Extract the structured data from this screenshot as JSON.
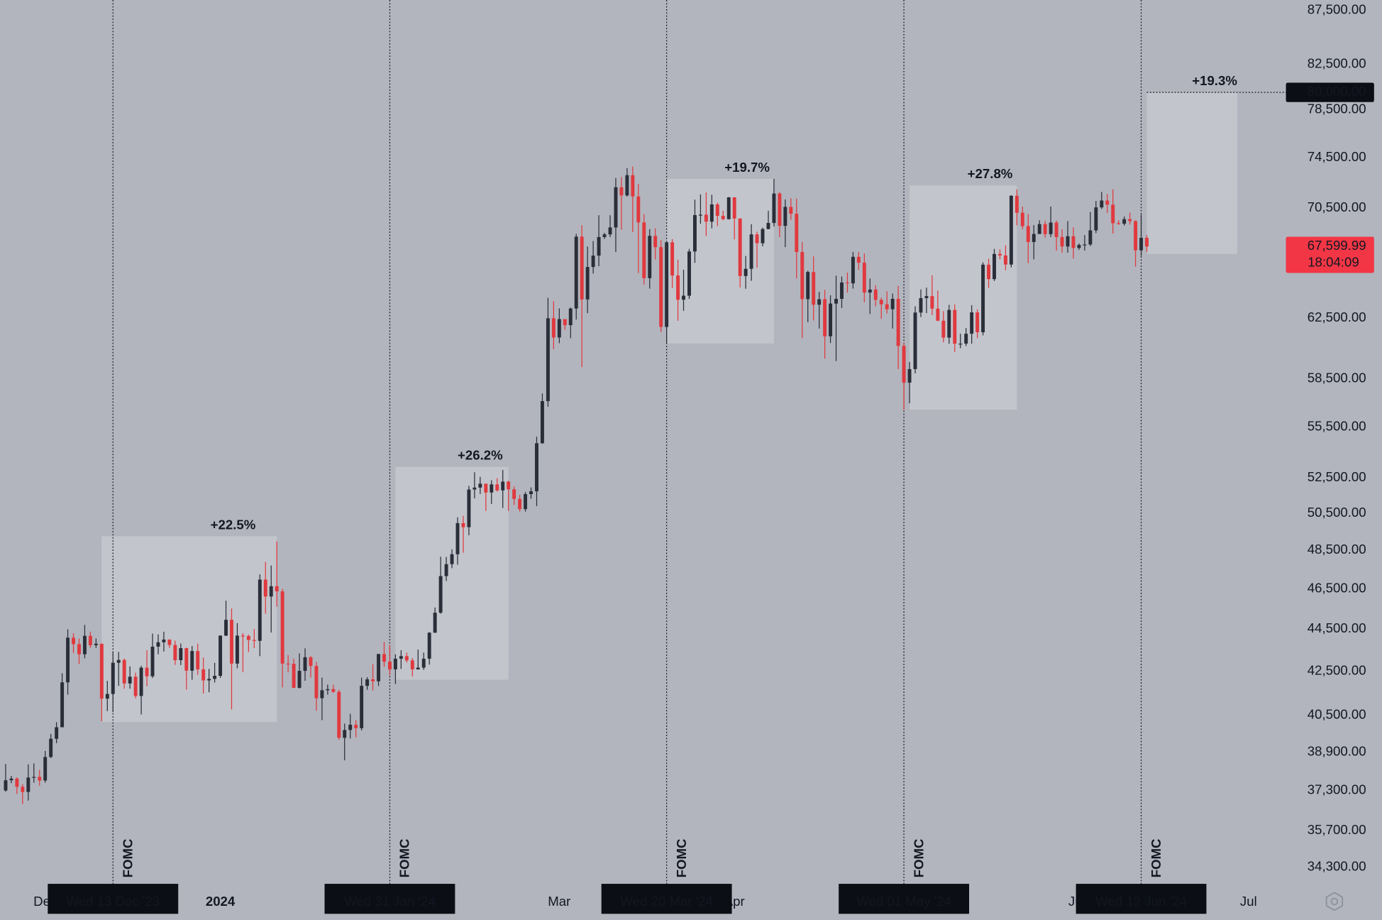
{
  "chart_data": {
    "type": "candlestick",
    "log_scale": true,
    "up_color": "#2a2e39",
    "down_color": "#e0393e",
    "xlim": [
      "2023-11-23",
      "2024-07-07"
    ],
    "ylim": [
      33650,
      88500
    ],
    "yticks": [
      {
        "value": 87500,
        "label": "87,500.00"
      },
      {
        "value": 82500,
        "label": "82,500.00"
      },
      {
        "value": 78500,
        "label": "78,500.00"
      },
      {
        "value": 74500,
        "label": "74,500.00"
      },
      {
        "value": 70500,
        "label": "70,500.00"
      },
      {
        "value": 62500,
        "label": "62,500.00"
      },
      {
        "value": 58500,
        "label": "58,500.00"
      },
      {
        "value": 55500,
        "label": "55,500.00"
      },
      {
        "value": 52500,
        "label": "52,500.00"
      },
      {
        "value": 50500,
        "label": "50,500.00"
      },
      {
        "value": 48500,
        "label": "48,500.00"
      },
      {
        "value": 46500,
        "label": "46,500.00"
      },
      {
        "value": 44500,
        "label": "44,500.00"
      },
      {
        "value": 42500,
        "label": "42,500.00"
      },
      {
        "value": 40500,
        "label": "40,500.00"
      },
      {
        "value": 38900,
        "label": "38,900.00"
      },
      {
        "value": 37300,
        "label": "37,300.00"
      },
      {
        "value": 35700,
        "label": "35,700.00"
      },
      {
        "value": 34300,
        "label": "34,300.00"
      }
    ],
    "xticks": [
      {
        "value": "2023-12-01",
        "label": "Dec"
      },
      {
        "value": "2024-01-01",
        "label": "2024"
      },
      {
        "value": "2024-03-01",
        "label": "Mar"
      },
      {
        "value": "2024-04-01",
        "label": "Apr"
      },
      {
        "value": "2024-06-01",
        "label": "Jun"
      },
      {
        "value": "2024-07-01",
        "label": "Jul"
      }
    ],
    "events": [
      {
        "date": "2023-12-13",
        "label": "Wed 13 Dec '23",
        "text": "FOMC"
      },
      {
        "date": "2024-01-31",
        "label": "Wed 31 Jan '24",
        "text": "FOMC"
      },
      {
        "date": "2024-03-20",
        "label": "Wed 20 Mar '24",
        "text": "FOMC"
      },
      {
        "date": "2024-05-01",
        "label": "Wed 01 May '24",
        "text": "FOMC"
      },
      {
        "date": "2024-06-12",
        "label": "Wed 12 Jun '24",
        "text": "FOMC"
      }
    ],
    "ranges": [
      {
        "start": "2023-12-11",
        "end": "2024-01-11",
        "low": 40200,
        "high": 49250,
        "label": "+22.5%"
      },
      {
        "start": "2024-02-01",
        "end": "2024-02-21",
        "low": 42100,
        "high": 53130,
        "label": "+26.2%"
      },
      {
        "start": "2024-03-20",
        "end": "2024-04-08",
        "low": 60800,
        "high": 72780,
        "label": "+19.7%"
      },
      {
        "start": "2024-05-02",
        "end": "2024-05-21",
        "low": 56550,
        "high": 72270,
        "label": "+27.8%"
      },
      {
        "start": "2024-06-13",
        "end": "2024-06-29",
        "low": 67050,
        "high": 80000,
        "label": "+19.3%"
      }
    ],
    "target": {
      "value": 80000,
      "label": "80,000.00"
    },
    "last_price": {
      "value": 67599.99,
      "label": "67,599.99",
      "countdown": "18:04:09"
    },
    "x": [
      "2023-11-24",
      "2023-11-25",
      "2023-11-26",
      "2023-11-27",
      "2023-11-28",
      "2023-11-29",
      "2023-11-30",
      "2023-12-01",
      "2023-12-02",
      "2023-12-03",
      "2023-12-04",
      "2023-12-05",
      "2023-12-06",
      "2023-12-07",
      "2023-12-08",
      "2023-12-09",
      "2023-12-10",
      "2023-12-11",
      "2023-12-12",
      "2023-12-13",
      "2023-12-14",
      "2023-12-15",
      "2023-12-16",
      "2023-12-17",
      "2023-12-18",
      "2023-12-19",
      "2023-12-20",
      "2023-12-21",
      "2023-12-22",
      "2023-12-23",
      "2023-12-24",
      "2023-12-25",
      "2023-12-26",
      "2023-12-27",
      "2023-12-28",
      "2023-12-29",
      "2023-12-30",
      "2023-12-31",
      "2024-01-01",
      "2024-01-02",
      "2024-01-03",
      "2024-01-04",
      "2024-01-05",
      "2024-01-06",
      "2024-01-07",
      "2024-01-08",
      "2024-01-09",
      "2024-01-10",
      "2024-01-11",
      "2024-01-12",
      "2024-01-13",
      "2024-01-14",
      "2024-01-15",
      "2024-01-16",
      "2024-01-17",
      "2024-01-18",
      "2024-01-19",
      "2024-01-20",
      "2024-01-21",
      "2024-01-22",
      "2024-01-23",
      "2024-01-24",
      "2024-01-25",
      "2024-01-26",
      "2024-01-27",
      "2024-01-28",
      "2024-01-29",
      "2024-01-30",
      "2024-01-31",
      "2024-02-01",
      "2024-02-02",
      "2024-02-03",
      "2024-02-04",
      "2024-02-05",
      "2024-02-06",
      "2024-02-07",
      "2024-02-08",
      "2024-02-09",
      "2024-02-10",
      "2024-02-11",
      "2024-02-12",
      "2024-02-13",
      "2024-02-14",
      "2024-02-15",
      "2024-02-16",
      "2024-02-17",
      "2024-02-18",
      "2024-02-19",
      "2024-02-20",
      "2024-02-21",
      "2024-02-22",
      "2024-02-23",
      "2024-02-24",
      "2024-02-25",
      "2024-02-26",
      "2024-02-27",
      "2024-02-28",
      "2024-02-29",
      "2024-03-01",
      "2024-03-02",
      "2024-03-03",
      "2024-03-04",
      "2024-03-05",
      "2024-03-06",
      "2024-03-07",
      "2024-03-08",
      "2024-03-09",
      "2024-03-10",
      "2024-03-11",
      "2024-03-12",
      "2024-03-13",
      "2024-03-14",
      "2024-03-15",
      "2024-03-16",
      "2024-03-17",
      "2024-03-18",
      "2024-03-19",
      "2024-03-20",
      "2024-03-21",
      "2024-03-22",
      "2024-03-23",
      "2024-03-24",
      "2024-03-25",
      "2024-03-26",
      "2024-03-27",
      "2024-03-28",
      "2024-03-29",
      "2024-03-30",
      "2024-03-31",
      "2024-04-01",
      "2024-04-02",
      "2024-04-03",
      "2024-04-04",
      "2024-04-05",
      "2024-04-06",
      "2024-04-07",
      "2024-04-08",
      "2024-04-09",
      "2024-04-10",
      "2024-04-11",
      "2024-04-12",
      "2024-04-13",
      "2024-04-14",
      "2024-04-15",
      "2024-04-16",
      "2024-04-17",
      "2024-04-18",
      "2024-04-19",
      "2024-04-20",
      "2024-04-21",
      "2024-04-22",
      "2024-04-23",
      "2024-04-24",
      "2024-04-25",
      "2024-04-26",
      "2024-04-27",
      "2024-04-28",
      "2024-04-29",
      "2024-04-30",
      "2024-05-01",
      "2024-05-02",
      "2024-05-03",
      "2024-05-04",
      "2024-05-05",
      "2024-05-06",
      "2024-05-07",
      "2024-05-08",
      "2024-05-09",
      "2024-05-10",
      "2024-05-11",
      "2024-05-12",
      "2024-05-13",
      "2024-05-14",
      "2024-05-15",
      "2024-05-16",
      "2024-05-17",
      "2024-05-18",
      "2024-05-19",
      "2024-05-20",
      "2024-05-21",
      "2024-05-22",
      "2024-05-23",
      "2024-05-24",
      "2024-05-25",
      "2024-05-26",
      "2024-05-27",
      "2024-05-28",
      "2024-05-29",
      "2024-05-30",
      "2024-05-31",
      "2024-06-01",
      "2024-06-02",
      "2024-06-03",
      "2024-06-04",
      "2024-06-05",
      "2024-06-06",
      "2024-06-07",
      "2024-06-08",
      "2024-06-09",
      "2024-06-10",
      "2024-06-11",
      "2024-06-12",
      "2024-06-13"
    ],
    "open": [
      37300,
      37720,
      37790,
      37450,
      37240,
      37830,
      37860,
      37710,
      38690,
      39470,
      39970,
      41980,
      44080,
      43770,
      43290,
      44170,
      43720,
      43790,
      41240,
      41450,
      42890,
      43020,
      41930,
      42240,
      41360,
      42660,
      42260,
      43650,
      43860,
      43990,
      43730,
      43010,
      43580,
      42520,
      43440,
      42580,
      42070,
      42140,
      42280,
      44180,
      44950,
      42850,
      44180,
      44160,
      43970,
      43930,
      46970,
      46110,
      46630,
      46370,
      42850,
      42840,
      41730,
      42510,
      43150,
      42740,
      41260,
      41620,
      41670,
      41550,
      39510,
      39850,
      40080,
      39930,
      41820,
      42120,
      42030,
      43300,
      42940,
      42580,
      43080,
      43200,
      43000,
      42580,
      42660,
      43080,
      44320,
      45300,
      47150,
      47770,
      48290,
      49960,
      49740,
      51830,
      51940,
      52160,
      51660,
      52120,
      51780,
      52280,
      51840,
      51300,
      50730,
      51570,
      51730,
      54520,
      57090,
      62500,
      61200,
      62440,
      62030,
      63170,
      68330,
      63800,
      66100,
      66930,
      68300,
      68500,
      69020,
      72120,
      71480,
      73080,
      71400,
      69400,
      65300,
      68390,
      67550,
      61910,
      67910,
      65490,
      63780,
      64060,
      67230,
      69960,
      69990,
      69460,
      70780,
      69900,
      69650,
      71330,
      69700,
      65450,
      65970,
      68500,
      67840,
      68900,
      69360,
      71630,
      69140,
      70590,
      70060,
      67190,
      63820,
      65740,
      63430,
      63810,
      61280,
      63510,
      63840,
      64990,
      64930,
      66840,
      66410,
      64280,
      64490,
      63770,
      63460,
      63120,
      63840,
      60640,
      58250,
      59120,
      62890,
      63890,
      64030,
      63160,
      62330,
      61190,
      63070,
      60790,
      60790,
      61450,
      62900,
      61550,
      66270,
      65230,
      67050,
      66940,
      66280,
      71450,
      70140,
      69120,
      67930,
      68530,
      69270,
      68520,
      69390,
      68300,
      67600,
      68360,
      67490,
      67710,
      67750,
      68800,
      70550,
      71080,
      70760,
      69340,
      69300,
      69650,
      69500,
      67320,
      68240
    ],
    "high": [
      38400,
      37900,
      37840,
      37560,
      38380,
      38420,
      38150,
      38950,
      39680,
      40190,
      42400,
      44490,
      44300,
      44040,
      44700,
      44370,
      44040,
      43790,
      42050,
      43430,
      43400,
      43090,
      42720,
      42430,
      42750,
      43480,
      44280,
      44240,
      44370,
      44000,
      43940,
      43800,
      43600,
      43680,
      43790,
      43130,
      42600,
      42890,
      44190,
      45900,
      45510,
      44790,
      44300,
      44230,
      44500,
      47240,
      47890,
      47700,
      48970,
      46500,
      43250,
      43080,
      43330,
      43570,
      43200,
      42930,
      42200,
      41880,
      41870,
      41650,
      40130,
      40560,
      40280,
      42200,
      42220,
      42820,
      43310,
      43880,
      43730,
      43290,
      43480,
      43370,
      43110,
      43510,
      43370,
      44350,
      45560,
      48160,
      48150,
      48550,
      50280,
      50360,
      52040,
      52820,
      52550,
      52160,
      52360,
      52480,
      52950,
      52330,
      52010,
      51520,
      51690,
      51950,
      54910,
      57570,
      63910,
      63680,
      63180,
      62440,
      63230,
      68540,
      69190,
      67600,
      68000,
      69950,
      68620,
      69950,
      72850,
      72930,
      73650,
      73780,
      72390,
      70030,
      68900,
      68950,
      68070,
      68000,
      68150,
      66630,
      65900,
      67420,
      71150,
      71560,
      71710,
      71530,
      70910,
      70300,
      71350,
      71340,
      69700,
      66900,
      69270,
      68700,
      69010,
      70290,
      72780,
      71740,
      71170,
      71260,
      71230,
      67940,
      65830,
      66870,
      64330,
      64470,
      64090,
      65480,
      65420,
      65700,
      67200,
      67190,
      67080,
      65270,
      64790,
      63920,
      64370,
      64210,
      64750,
      60840,
      59590,
      63320,
      64500,
      64630,
      65500,
      64420,
      62990,
      63420,
      63450,
      61450,
      61830,
      63400,
      63110,
      66440,
      66700,
      67420,
      67390,
      67680,
      71500,
      71950,
      70620,
      70040,
      69200,
      69560,
      69520,
      70610,
      69540,
      68880,
      69500,
      69020,
      67820,
      68450,
      70190,
      71050,
      71750,
      71600,
      71950,
      69560,
      69850,
      70160,
      69560,
      69990,
      68450
    ],
    "low": [
      37250,
      37600,
      37160,
      36750,
      36890,
      37620,
      37500,
      37620,
      38650,
      39280,
      39970,
      41420,
      43350,
      42830,
      43100,
      43590,
      43590,
      40230,
      40680,
      40640,
      41820,
      41690,
      41690,
      41250,
      40530,
      41800,
      42180,
      43290,
      43420,
      43590,
      42790,
      42780,
      41650,
      42100,
      42330,
      41470,
      41530,
      41970,
      42190,
      44160,
      40750,
      42630,
      42450,
      43400,
      43580,
      43200,
      45250,
      44330,
      45600,
      41750,
      42440,
      41720,
      41700,
      42050,
      42200,
      40700,
      40280,
      41420,
      41500,
      39430,
      38550,
      39480,
      39530,
      39830,
      41640,
      41610,
      41810,
      42700,
      42300,
      41900,
      42600,
      42900,
      42250,
      42570,
      42560,
      42800,
      44320,
      45250,
      46900,
      47560,
      47740,
      48370,
      49300,
      51330,
      51580,
      50630,
      51020,
      51710,
      50790,
      50630,
      50960,
      50590,
      50590,
      51310,
      50900,
      54480,
      56740,
      60430,
      60820,
      61710,
      61150,
      62410,
      59250,
      62850,
      65630,
      66160,
      68160,
      68300,
      67190,
      68850,
      71380,
      68670,
      65660,
      64840,
      64560,
      66640,
      61560,
      60800,
      64590,
      62330,
      63010,
      63830,
      66400,
      69300,
      68380,
      68950,
      69120,
      69570,
      69620,
      68130,
      64640,
      64550,
      65110,
      66050,
      67610,
      68880,
      69090,
      68300,
      67550,
      69600,
      65280,
      61160,
      62230,
      62350,
      61800,
      59800,
      60830,
      59640,
      63210,
      64280,
      64560,
      65890,
      63600,
      62790,
      63330,
      62460,
      62820,
      61800,
      59120,
      56550,
      56950,
      58840,
      62580,
      62850,
      62720,
      62300,
      60880,
      60770,
      60230,
      60490,
      60630,
      60790,
      61150,
      61340,
      64610,
      65100,
      66660,
      65870,
      66070,
      69180,
      68880,
      66380,
      66660,
      68530,
      68250,
      68300,
      67300,
      67140,
      67140,
      66720,
      67350,
      67300,
      67630,
      68590,
      70420,
      70130,
      68560,
      69230,
      69160,
      69230,
      66120,
      66900,
      67200
    ],
    "close": [
      37720,
      37790,
      37450,
      37240,
      37830,
      37860,
      37710,
      38690,
      39470,
      39970,
      41980,
      44080,
      43770,
      43290,
      44170,
      43720,
      43790,
      41240,
      41450,
      42890,
      43020,
      41930,
      42240,
      41360,
      42660,
      42260,
      43650,
      43860,
      43990,
      43730,
      43010,
      43580,
      42520,
      43440,
      42580,
      42070,
      42140,
      42280,
      44180,
      44950,
      42850,
      44180,
      44160,
      43970,
      43930,
      46970,
      46110,
      46630,
      46370,
      42850,
      42840,
      41730,
      42510,
      43150,
      42740,
      41260,
      41620,
      41670,
      41550,
      39510,
      39850,
      40080,
      39930,
      41820,
      42120,
      42030,
      43300,
      42940,
      42580,
      43080,
      43200,
      43000,
      42580,
      42660,
      43080,
      44320,
      45300,
      47150,
      47770,
      48290,
      49960,
      49740,
      51830,
      51940,
      52160,
      51660,
      52120,
      51780,
      52280,
      51840,
      51300,
      50730,
      51570,
      51730,
      54520,
      57090,
      62500,
      61200,
      62440,
      62030,
      63170,
      68330,
      63800,
      66100,
      66930,
      68300,
      68500,
      69020,
      72120,
      71480,
      73080,
      71400,
      69400,
      65300,
      68390,
      67550,
      61910,
      67910,
      65490,
      63780,
      64060,
      67230,
      69960,
      69990,
      69460,
      70780,
      69900,
      69650,
      71330,
      69700,
      65450,
      65970,
      68500,
      67840,
      68900,
      69360,
      71630,
      69140,
      70590,
      70060,
      67190,
      63820,
      65740,
      63430,
      63810,
      61280,
      63510,
      63840,
      64990,
      64930,
      66840,
      66410,
      64280,
      64490,
      63770,
      63460,
      63120,
      63840,
      60640,
      58250,
      59120,
      62890,
      63890,
      64030,
      63160,
      62330,
      61190,
      63070,
      60790,
      60790,
      61450,
      62900,
      61550,
      66270,
      65230,
      67050,
      66940,
      66280,
      71450,
      70140,
      69120,
      67930,
      68530,
      69270,
      68520,
      69390,
      68300,
      67600,
      68360,
      67490,
      67710,
      67750,
      68800,
      70550,
      71080,
      70760,
      69340,
      69300,
      69650,
      69500,
      67320,
      68240,
      67599.99
    ]
  }
}
